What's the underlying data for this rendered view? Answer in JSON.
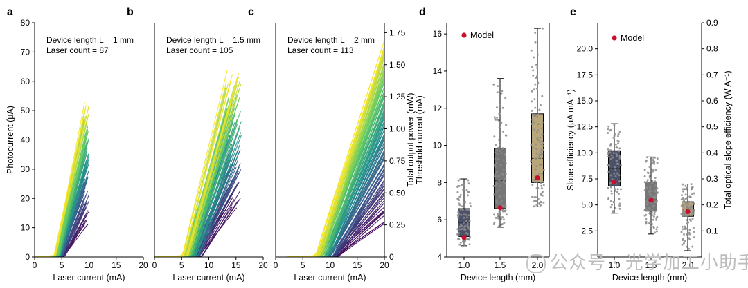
{
  "chart_data": [
    {
      "panel": "a",
      "type": "line",
      "annotation": [
        "Device length L = 1 mm",
        "Laser count = 87"
      ],
      "xlabel": "Laser current (mA)",
      "ylabel": "Photocurrent (μA)",
      "xlim": [
        0,
        20
      ],
      "ylim": [
        0,
        80
      ],
      "xticks": [
        0,
        5,
        10,
        15,
        20
      ],
      "yticks": [
        0,
        10,
        20,
        30,
        40,
        50,
        60,
        70,
        80
      ],
      "curves": {
        "count": 87,
        "start_current": 0,
        "end_current_range": [
          9,
          10
        ],
        "end_value_range": [
          10,
          53
        ]
      },
      "colormap": [
        "#440154",
        "#3b528b",
        "#21918c",
        "#5ec962",
        "#fde725"
      ]
    },
    {
      "panel": "b",
      "type": "line",
      "annotation": [
        "Device length L = 1.5 mm",
        "Laser count = 105"
      ],
      "xlabel": "Laser current (mA)",
      "xlim": [
        0,
        20
      ],
      "ylim": [
        0,
        80
      ],
      "xticks": [
        0,
        5,
        10,
        15,
        20
      ],
      "curves": {
        "count": 105,
        "start_current": 0,
        "end_current_range": [
          13,
          16
        ],
        "end_value_range": [
          15,
          64
        ]
      }
    },
    {
      "panel": "c",
      "type": "line",
      "annotation": [
        "Device length L = 2 mm",
        "Laser count = 113"
      ],
      "xlabel": "Laser current (mA)",
      "y2label": "Total output power (mW)",
      "xlim": [
        0,
        20
      ],
      "ylim": [
        0,
        80
      ],
      "y2lim": [
        0,
        1.8275
      ],
      "xticks": [
        0,
        5,
        10,
        15,
        20
      ],
      "y2ticks": [
        0,
        0.25,
        0.5,
        0.75,
        1.0,
        1.25,
        1.5,
        1.75
      ],
      "y2ticklabels": [
        "0",
        "0.25",
        "0.50",
        "0.75",
        "1.00",
        "1.25",
        "1.50",
        "1.75"
      ],
      "curves": {
        "count": 113,
        "start_current": 0,
        "end_current": 20,
        "end_value_range": [
          10,
          75
        ]
      }
    },
    {
      "panel": "d",
      "type": "box",
      "categories": [
        "1.0",
        "1.5",
        "2.0"
      ],
      "xlabel": "Device length (mm)",
      "ylabel": "Threshold current (mA)",
      "ylim": [
        4,
        16.6
      ],
      "yticks": [
        4,
        6,
        8,
        10,
        12,
        14,
        16
      ],
      "boxes": [
        {
          "min": 4.6,
          "q1": 5.1,
          "median": 5.85,
          "q3": 6.6,
          "max": 8.2,
          "color": "#4a5168"
        },
        {
          "min": 5.6,
          "q1": 6.6,
          "median": 8.1,
          "q3": 9.85,
          "max": 13.6,
          "color": "#767676"
        },
        {
          "min": 6.7,
          "q1": 8.0,
          "median": 9.3,
          "q3": 11.7,
          "max": 16.3,
          "color": "#b9a77a"
        }
      ],
      "model": [
        5.05,
        6.65,
        8.25
      ],
      "counts": [
        87,
        105,
        113
      ],
      "legend": "Model"
    },
    {
      "panel": "e",
      "type": "box",
      "categories": [
        "1.0",
        "1.5",
        "2.0"
      ],
      "xlabel": "Device length (mm)",
      "ylabel": "Slope efficiency (μA mA⁻¹)",
      "y2label": "Total optical slope efficiency (W A⁻¹)",
      "ylim": [
        0,
        22.5
      ],
      "yticks": [
        2.5,
        5.0,
        7.5,
        10.0,
        12.5,
        15.0,
        17.5,
        20.0
      ],
      "y2lim": [
        0,
        0.9
      ],
      "y2ticks": [
        0.1,
        0.2,
        0.3,
        0.4,
        0.5,
        0.6,
        0.7,
        0.8,
        0.9
      ],
      "boxes": [
        {
          "min": 4.2,
          "q1": 6.8,
          "median": 8.5,
          "q3": 10.2,
          "max": 12.8,
          "color": "#4a5168"
        },
        {
          "min": 2.2,
          "q1": 4.4,
          "median": 5.5,
          "q3": 7.2,
          "max": 9.6,
          "color": "#767676"
        },
        {
          "min": 0.6,
          "q1": 3.9,
          "median": 4.6,
          "q3": 5.3,
          "max": 7.0,
          "color": "#b9a77a"
        }
      ],
      "model": [
        7.2,
        5.45,
        4.35
      ],
      "counts": [
        87,
        105,
        113
      ],
      "legend": "Model"
    }
  ],
  "watermark": {
    "text": "公众号 · 光学加工小助手"
  },
  "colors": {
    "model_marker": "#c8102e",
    "axis": "#000000",
    "jitter": "#8c8c8c"
  }
}
